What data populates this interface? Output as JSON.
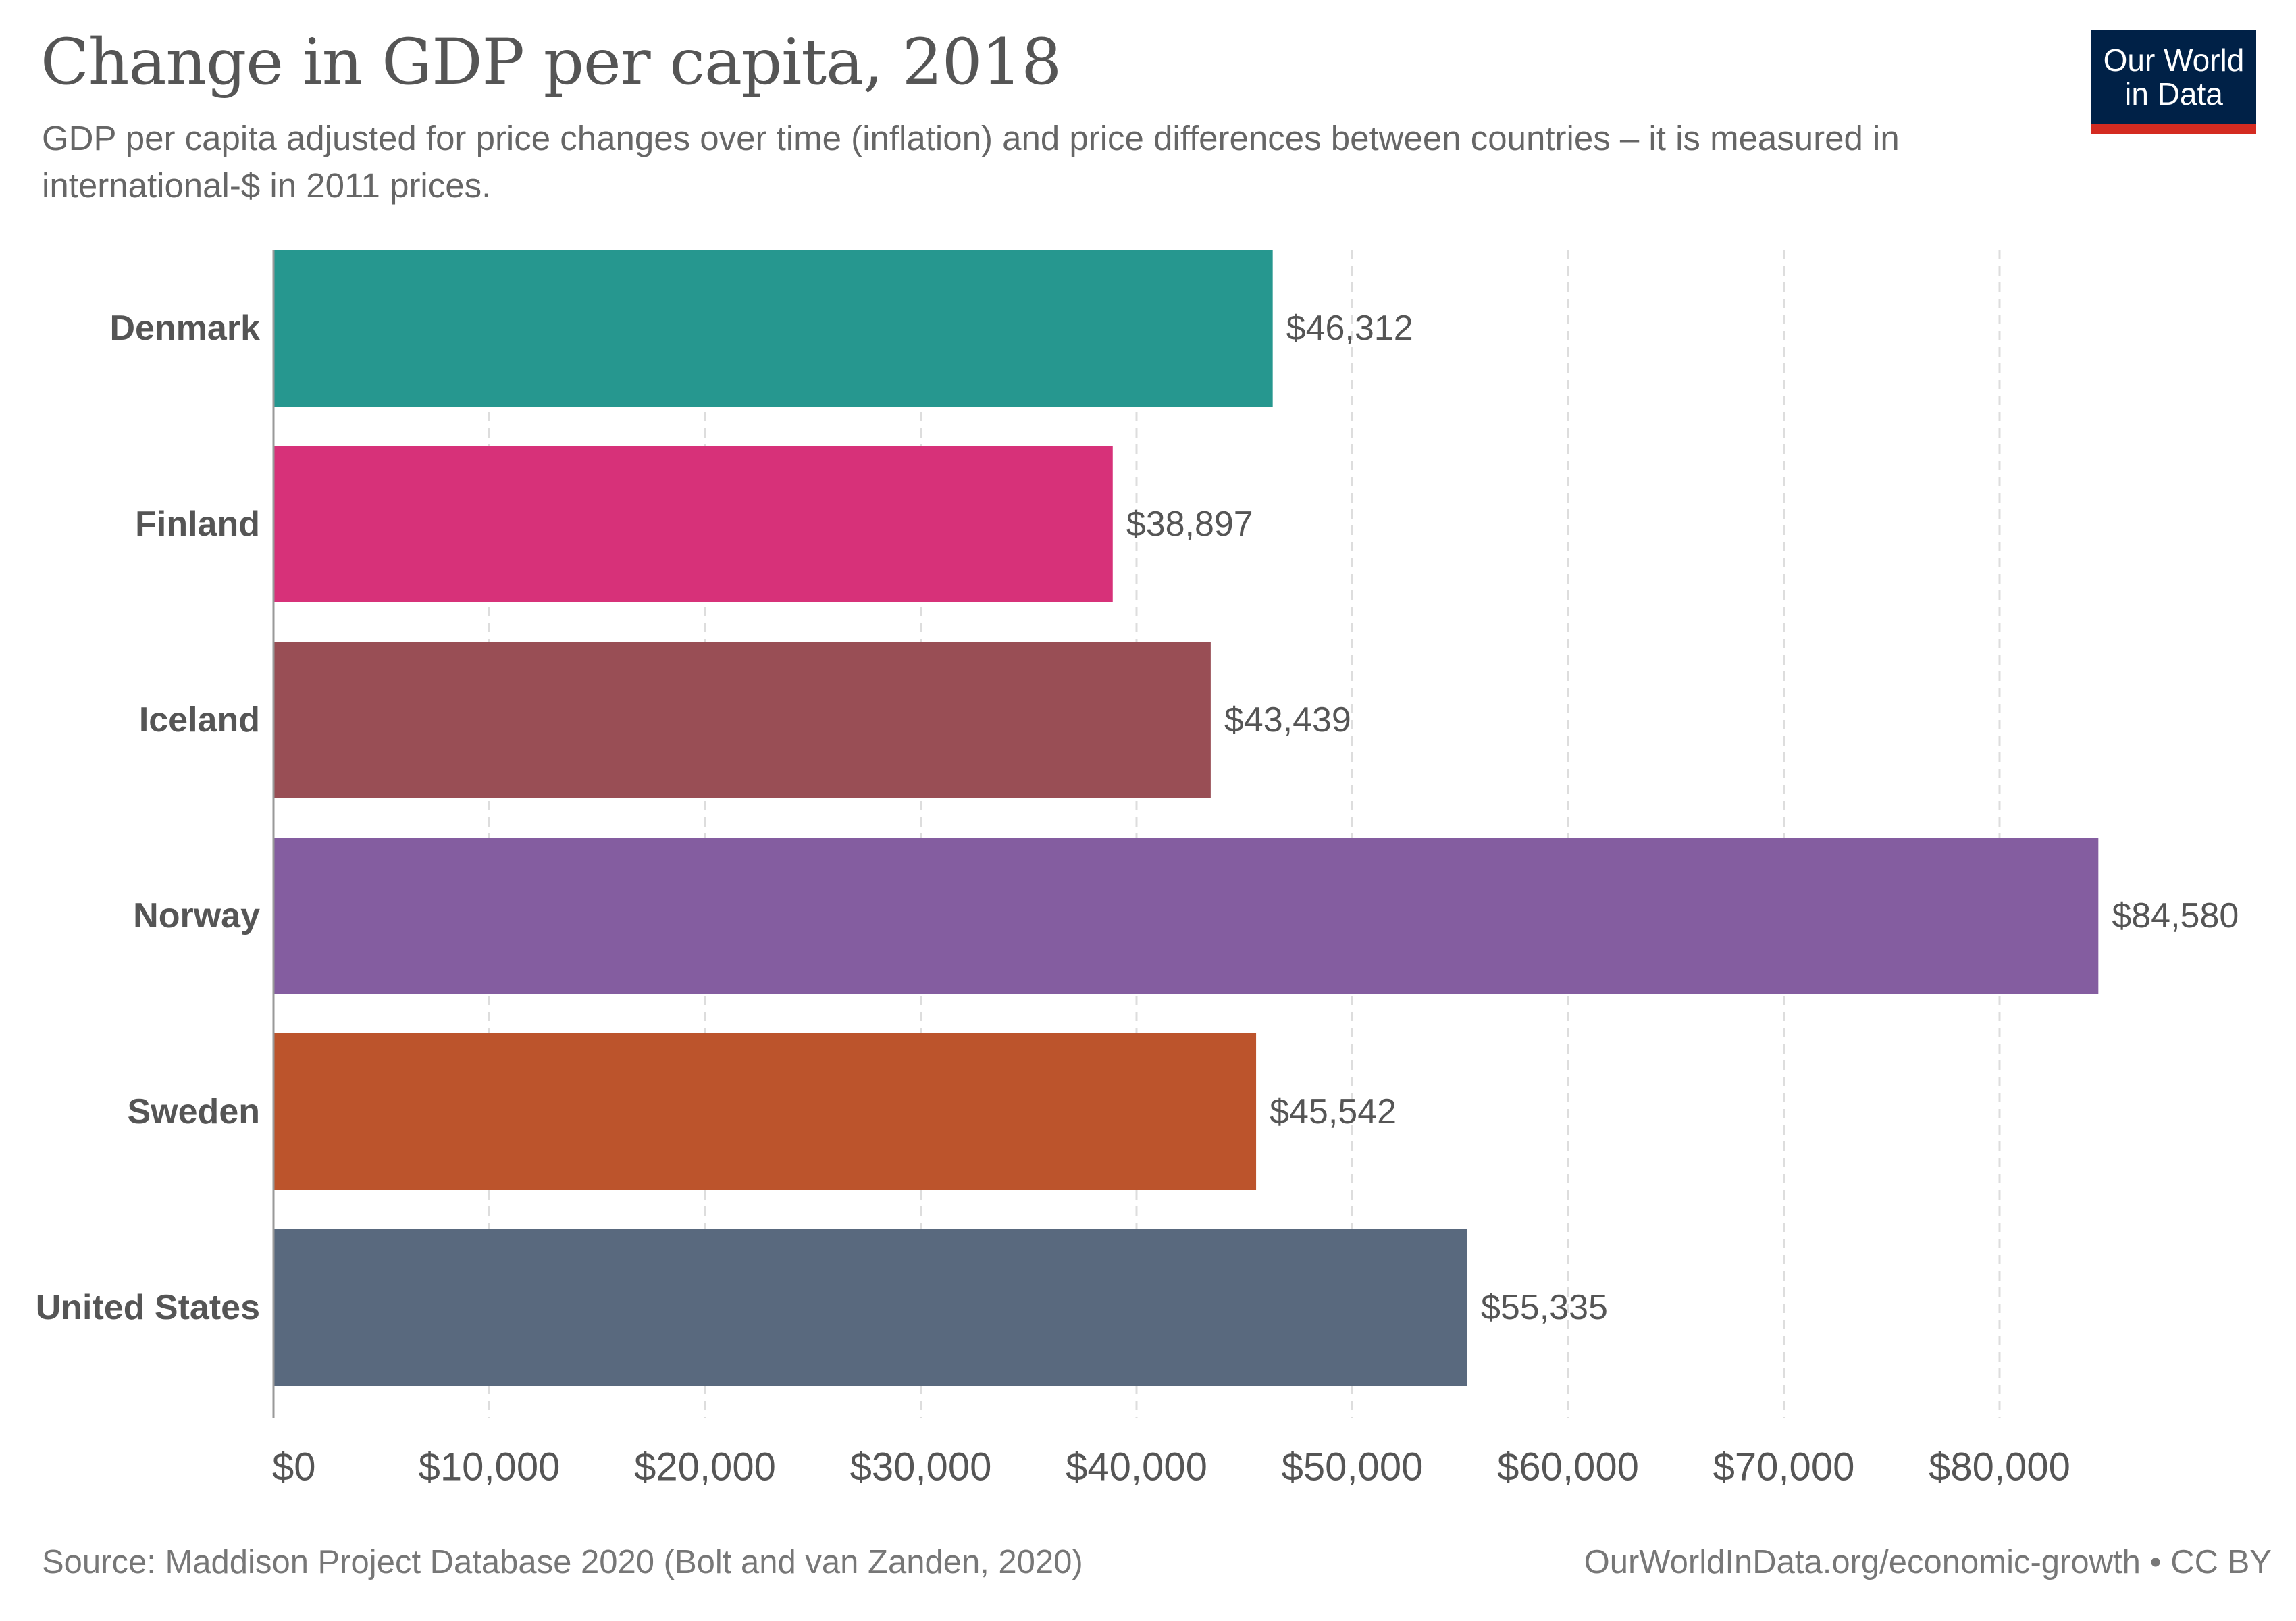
{
  "header": {
    "title": "Change in GDP per capita, 2018",
    "subtitle": "GDP per capita adjusted for price changes over time (inflation) and price differences between countries – it is measured in international-$ in 2011 prices."
  },
  "logo": {
    "line1": "Our World",
    "line2": "in Data",
    "bg_color": "#002147",
    "accent_color": "#d42b21"
  },
  "footer": {
    "source": "Source: Maddison Project Database 2020 (Bolt and van Zanden, 2020)",
    "credit": "OurWorldInData.org/economic-growth • CC BY"
  },
  "chart_data": {
    "type": "bar",
    "orientation": "horizontal",
    "title": "Change in GDP per capita, 2018",
    "categories": [
      "Denmark",
      "Finland",
      "Iceland",
      "Norway",
      "Sweden",
      "United States"
    ],
    "values": [
      46312,
      38897,
      43439,
      84580,
      45542,
      55335
    ],
    "value_labels": [
      "$46,312",
      "$38,897",
      "$43,439",
      "$84,580",
      "$45,542",
      "$55,335"
    ],
    "colors": [
      "#26978f",
      "#d73179",
      "#994e55",
      "#845da0",
      "#bc542c",
      "#59697e"
    ],
    "xlim": [
      0,
      80000
    ],
    "x_ticks": [
      0,
      10000,
      20000,
      30000,
      40000,
      50000,
      60000,
      70000,
      80000
    ],
    "x_tick_labels": [
      "$0",
      "$10,000",
      "$20,000",
      "$30,000",
      "$40,000",
      "$50,000",
      "$60,000",
      "$70,000",
      "$80,000"
    ],
    "grid": "vertical-dashed"
  }
}
